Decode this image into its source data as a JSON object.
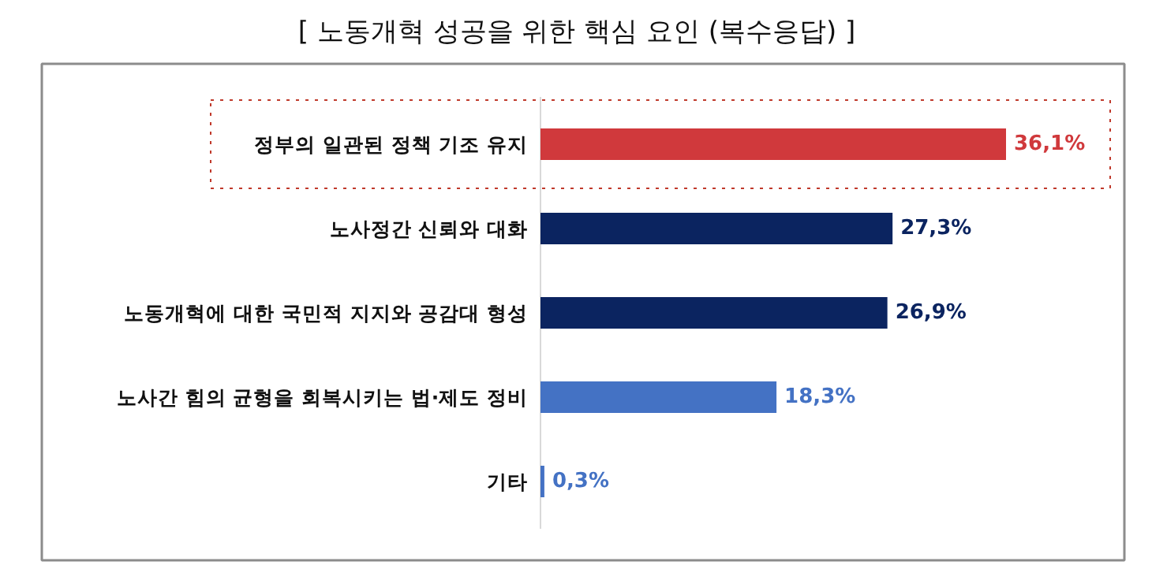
{
  "chart_data": {
    "type": "bar",
    "orientation": "horizontal",
    "title": "[ 노동개혁 성공을 위한 핵심 요인 (복수응답) ]",
    "categories": [
      "정부의 일관된 정책 기조 유지",
      "노사정간 신뢰와 대화",
      "노동개혁에 대한 국민적 지지와 공감대 형성",
      "노사간 힘의 균형을 회복시키는 법·제도 정비",
      "기타"
    ],
    "values": [
      36.1,
      27.3,
      26.9,
      18.3,
      0.3
    ],
    "colors": [
      "#d0393c",
      "#0b2460",
      "#0b2460",
      "#4472c4",
      "#4472c4"
    ],
    "value_labels": [
      "36,1%",
      "27,3%",
      "26,9%",
      "18,3%",
      "0,3%"
    ]
  }
}
